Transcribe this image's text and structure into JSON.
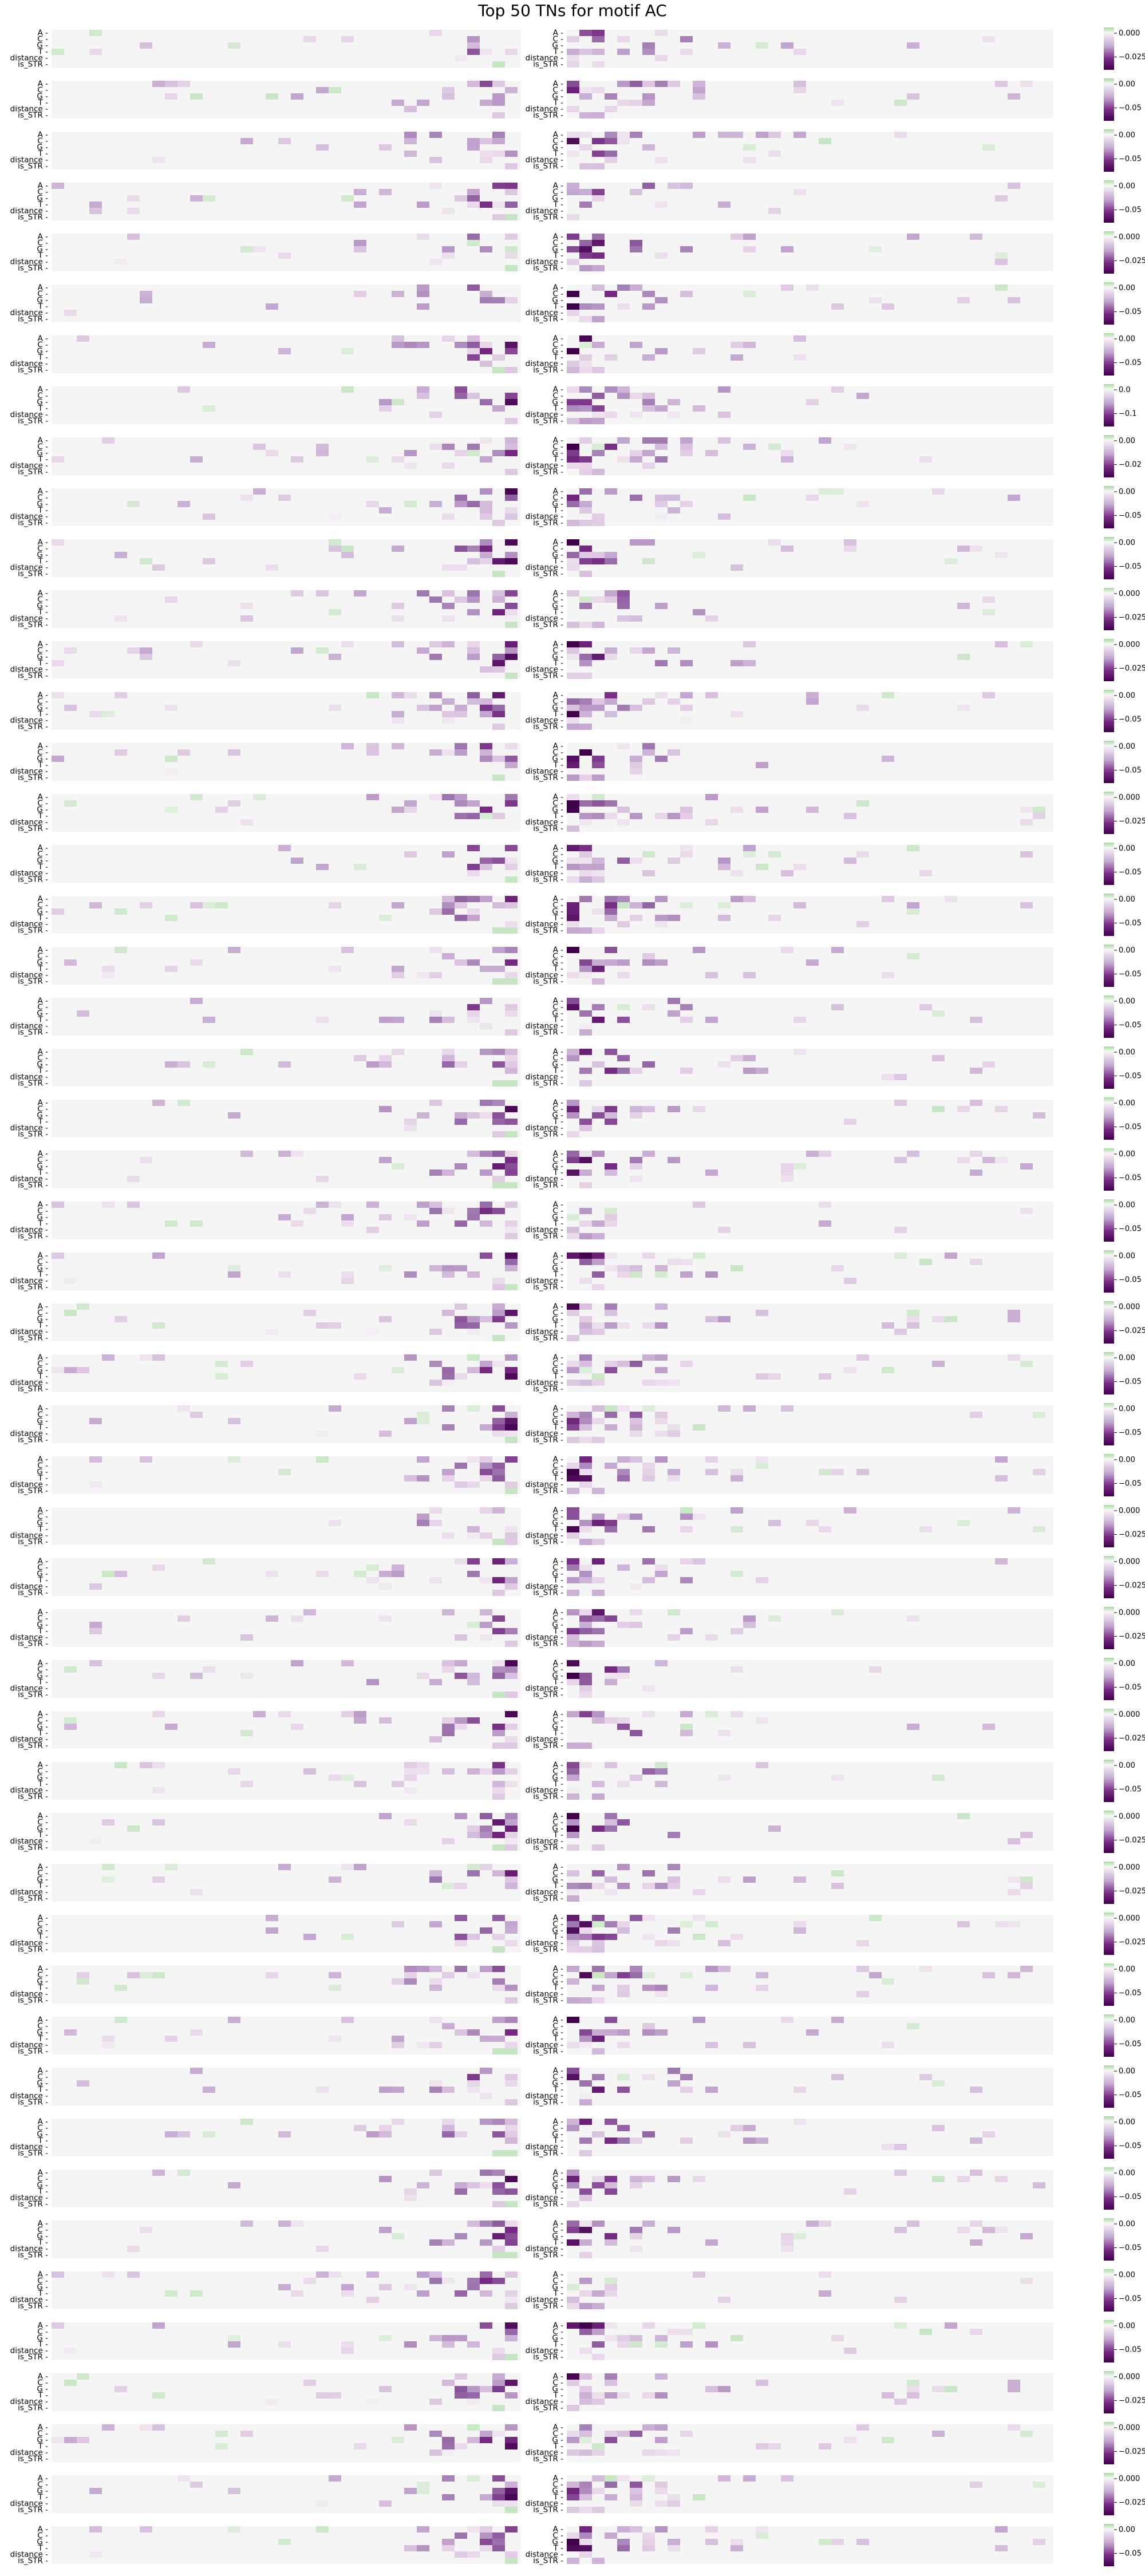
{
  "title": "Top 50 TNs for motif AC",
  "chart_data": {
    "type": "heatmap",
    "title": "Top 50 TNs for motif AC",
    "row_labels": [
      "A",
      "C",
      "G",
      "T",
      "distance",
      "is_STR"
    ],
    "colormap": "PRGn",
    "panels_per_row": 2,
    "num_rows": 50,
    "colors": {
      "low": "#40004b",
      "mid": "#f7f7f7",
      "high": "#a6dba0"
    },
    "colorbar_ticks": [
      [
        "0.000",
        "−0.025"
      ],
      [
        "0.00",
        "−0.05"
      ],
      [
        "0.00",
        "−0.05"
      ],
      [
        "0.00",
        "−0.05"
      ],
      [
        "0.000",
        "−0.025"
      ],
      [
        "0.00",
        "−0.05"
      ],
      [
        "0.00",
        "−0.05"
      ],
      [
        "0.0",
        "−0.1"
      ],
      [
        "0.00",
        "−0.02"
      ],
      [
        "0.00",
        "−0.05"
      ],
      [
        "0.00",
        "−0.05"
      ],
      [
        "0.000",
        "−0.025"
      ],
      [
        "0.000",
        "−0.025"
      ],
      [
        "0.00",
        "−0.05"
      ],
      [
        "0.00",
        "−0.05"
      ],
      [
        "0.000",
        "−0.025"
      ],
      [
        "0.00",
        "−0.05"
      ],
      [
        "0.00",
        "−0.05"
      ],
      [
        "0.00",
        "−0.05"
      ],
      [
        "0.00",
        "−0.05"
      ],
      [
        "0.00",
        "−0.05"
      ],
      [
        "0.00",
        "−0.05"
      ],
      [
        "0.00",
        "−0.05"
      ],
      [
        "0.00",
        "−0.05"
      ],
      [
        "0.00",
        "−0.05"
      ],
      [
        "0.000",
        "−0.025"
      ],
      [
        "0.00",
        "−0.05"
      ],
      [
        "0.00",
        "−0.05"
      ],
      [
        "0.00",
        "−0.05"
      ],
      [
        "0.000",
        "−0.025"
      ],
      [
        "0.000",
        "−0.025"
      ],
      [
        "0.000",
        "−0.025"
      ],
      [
        "0.00",
        "−0.05"
      ],
      [
        "0.000",
        "−0.025"
      ],
      [
        "0.00",
        "−0.05"
      ],
      [
        "0.000",
        "−0.025"
      ],
      [
        "0.000",
        "−0.025"
      ],
      [
        "0.000",
        "−0.025"
      ],
      [
        "0.00",
        "−0.05"
      ],
      [
        "0.00",
        "−0.05"
      ],
      [
        "0.00",
        "−0.05"
      ],
      [
        "0.00",
        "−0.05"
      ],
      [
        "0.00",
        "−0.05"
      ],
      [
        "0.00",
        "−0.05"
      ],
      [
        "0.00",
        "−0.05"
      ],
      [
        "0.00",
        "−0.05"
      ],
      [
        "0.000",
        "−0.025"
      ],
      [
        "0.000",
        "−0.025"
      ],
      [
        "0.000",
        "−0.025"
      ],
      [
        "0.00",
        "−0.05"
      ]
    ]
  }
}
